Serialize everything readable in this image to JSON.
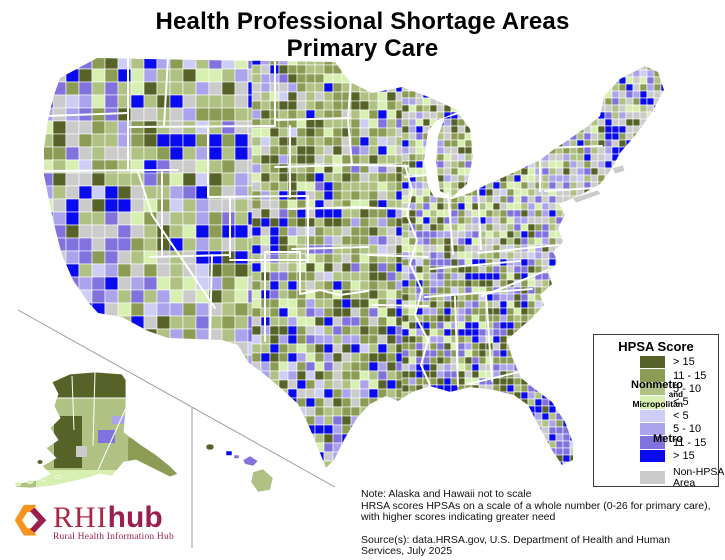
{
  "title": {
    "line1": "Health Professional Shortage Areas",
    "line2": "Primary Care"
  },
  "legend": {
    "title": "HPSA Score",
    "groups": {
      "nonmetro_1": "Nonmetro",
      "nonmetro_2": "and",
      "nonmetro_3": "Micropolitan",
      "metro": "Metro"
    },
    "items": [
      {
        "label": "> 15",
        "color": "#566227",
        "group": "nonmetro"
      },
      {
        "label": "11 - 15",
        "color": "#8C9C55",
        "group": "nonmetro"
      },
      {
        "label": "5 - 10",
        "color": "#AFC183",
        "group": "nonmetro"
      },
      {
        "label": "< 5",
        "color": "#D7EFB1",
        "group": "nonmetro"
      },
      {
        "label": "< 5",
        "color": "#CDCDF6",
        "group": "metro"
      },
      {
        "label": "5 - 10",
        "color": "#ABA3EC",
        "group": "metro"
      },
      {
        "label": "11 - 15",
        "color": "#8172DE",
        "group": "metro"
      },
      {
        "label": "> 15",
        "color": "#0A0AEE",
        "group": "metro"
      },
      {
        "label": "Non-HPSA Area",
        "color": "#CBCBCB",
        "group": "none"
      }
    ]
  },
  "notes": {
    "line1": "Note: Alaska and Hawaii not to scale",
    "line2": "HRSA scores HPSAs on a scale of a whole number (0-26 for primary care), with higher scores indicating greater need",
    "source": "Source(s): data.HRSA.gov, U.S. Department of Health and Human Services, July 2025"
  },
  "logo": {
    "acronym": "RHI",
    "suffix": "hub",
    "tagline": "Rural Health Information Hub",
    "orange": "#F7941E",
    "maroon_text": "#AC2743",
    "maroon_bold": "#9B1F4E"
  },
  "map": {
    "background": "#FFFFFF",
    "county_border_color": "#FFFFFF",
    "state_border_color": "#FFFFFF",
    "inset_divider_color": "#9A9A9A"
  }
}
